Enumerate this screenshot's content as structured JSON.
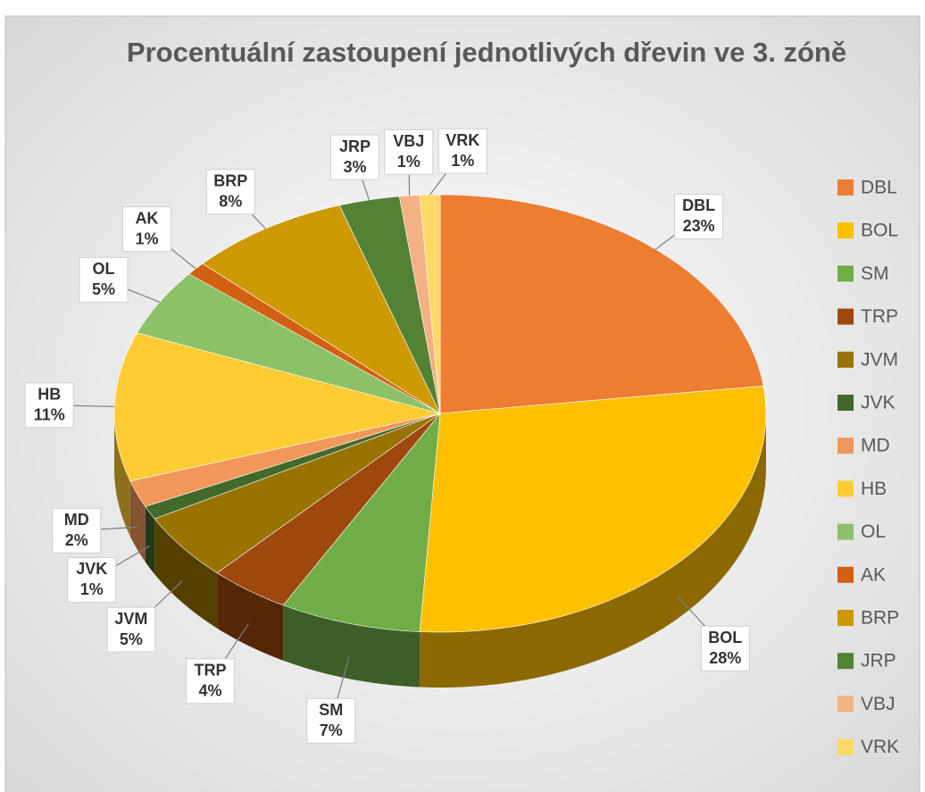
{
  "chart_data": {
    "type": "pie3d",
    "title": "Procentuální zastoupení jednotlivých dřevin ve 3. zóně",
    "categories": [
      "DBL",
      "BOL",
      "SM",
      "TRP",
      "JVM",
      "JVK",
      "MD",
      "HB",
      "OL",
      "AK",
      "BRP",
      "JRP",
      "VBJ",
      "VRK"
    ],
    "values": [
      23,
      28,
      7,
      4,
      5,
      1,
      2,
      11,
      5,
      1,
      8,
      3,
      1,
      1
    ],
    "value_labels": [
      "23%",
      "28%",
      "7%",
      "4%",
      "5%",
      "1%",
      "2%",
      "11%",
      "5%",
      "1%",
      "8%",
      "3%",
      "1%",
      "1%"
    ],
    "colors": [
      "#ed7d31",
      "#ffc000",
      "#70ad47",
      "#9e480e",
      "#997300",
      "#43682b",
      "#f1975a",
      "#ffcd33",
      "#8cc168",
      "#d26012",
      "#cc9a00",
      "#548235",
      "#f4b183",
      "#ffd966"
    ],
    "legend": "right"
  }
}
